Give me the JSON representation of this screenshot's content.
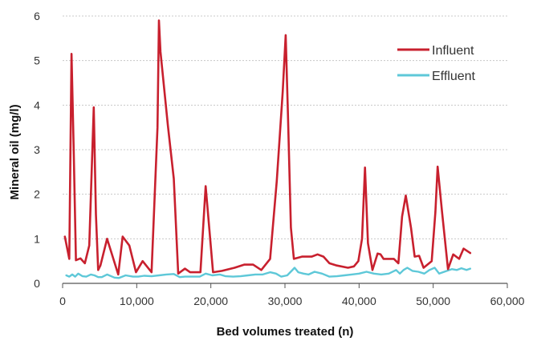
{
  "chart_data": {
    "type": "line",
    "title": "",
    "xlabel": "Bed volumes treated (n)",
    "ylabel": "Mineral oil (mg/l)",
    "xlim": [
      0,
      60000
    ],
    "ylim": [
      0,
      6
    ],
    "x_ticks": [
      0,
      10000,
      20000,
      30000,
      40000,
      50000,
      60000
    ],
    "x_tick_labels": [
      "0",
      "10,000",
      "20,000",
      "30,000",
      "40,000",
      "50,000",
      "60,000"
    ],
    "y_ticks": [
      0,
      1,
      2,
      3,
      4,
      5,
      6
    ],
    "y_tick_labels": [
      "0",
      "1",
      "2",
      "3",
      "4",
      "5",
      "6"
    ],
    "grid": "horizontal",
    "legend_position": "top-right",
    "series": [
      {
        "name": "Influent",
        "color": "#c8202e",
        "x": [
          300,
          900,
          1200,
          1500,
          1800,
          2400,
          3000,
          3600,
          4200,
          4500,
          4800,
          5100,
          6000,
          7500,
          8100,
          9000,
          9900,
          10800,
          12000,
          12800,
          13000,
          13200,
          14200,
          15000,
          15600,
          16500,
          17200,
          18600,
          19300,
          20300,
          21500,
          23200,
          24500,
          25700,
          26800,
          28000,
          28900,
          29700,
          30100,
          30400,
          30800,
          31200,
          32300,
          33600,
          34400,
          35200,
          36000,
          37000,
          38500,
          39300,
          39900,
          40400,
          40800,
          41200,
          41800,
          42500,
          42900,
          43300,
          44700,
          45300,
          45800,
          46300,
          47000,
          47500,
          48100,
          48700,
          49800,
          50300,
          50600,
          51200,
          52000,
          52700,
          53500,
          54100,
          55000
        ],
        "y": [
          1.05,
          0.55,
          5.15,
          3.0,
          0.52,
          0.56,
          0.45,
          0.85,
          3.95,
          1.55,
          0.3,
          0.4,
          1.0,
          0.2,
          1.05,
          0.85,
          0.25,
          0.5,
          0.25,
          3.5,
          5.9,
          5.2,
          3.55,
          2.35,
          0.22,
          0.33,
          0.25,
          0.25,
          2.18,
          0.25,
          0.28,
          0.35,
          0.42,
          0.42,
          0.3,
          0.55,
          2.3,
          4.3,
          5.57,
          3.8,
          1.25,
          0.55,
          0.6,
          0.6,
          0.65,
          0.6,
          0.45,
          0.4,
          0.35,
          0.38,
          0.5,
          1.0,
          2.6,
          0.9,
          0.3,
          0.67,
          0.65,
          0.55,
          0.55,
          0.45,
          1.5,
          1.97,
          1.25,
          0.6,
          0.62,
          0.35,
          0.5,
          1.6,
          2.62,
          1.6,
          0.32,
          0.65,
          0.55,
          0.78,
          0.68
        ]
      },
      {
        "name": "Effluent",
        "color": "#5ec8d8",
        "x": [
          500,
          900,
          1300,
          1700,
          2100,
          2700,
          3200,
          3800,
          4300,
          4800,
          5300,
          6000,
          7000,
          7600,
          8500,
          9500,
          10200,
          11000,
          12000,
          13000,
          14000,
          15000,
          15800,
          16500,
          17500,
          18500,
          19300,
          20200,
          21200,
          22000,
          23000,
          24000,
          25000,
          26000,
          27000,
          28000,
          28800,
          29500,
          30300,
          30900,
          31300,
          31800,
          32500,
          33200,
          34000,
          35000,
          36000,
          37000,
          38000,
          39000,
          40000,
          41000,
          42000,
          43000,
          44000,
          45000,
          45500,
          46000,
          46500,
          47200,
          48000,
          48800,
          49500,
          50200,
          50800,
          51500,
          52500,
          53200,
          53800,
          54500,
          55000
        ],
        "y": [
          0.18,
          0.15,
          0.2,
          0.15,
          0.22,
          0.16,
          0.15,
          0.2,
          0.18,
          0.14,
          0.14,
          0.2,
          0.13,
          0.12,
          0.18,
          0.15,
          0.15,
          0.17,
          0.16,
          0.18,
          0.2,
          0.21,
          0.14,
          0.15,
          0.15,
          0.15,
          0.22,
          0.18,
          0.2,
          0.16,
          0.15,
          0.16,
          0.18,
          0.2,
          0.2,
          0.25,
          0.22,
          0.15,
          0.18,
          0.28,
          0.35,
          0.25,
          0.22,
          0.2,
          0.26,
          0.22,
          0.15,
          0.16,
          0.18,
          0.2,
          0.22,
          0.26,
          0.22,
          0.2,
          0.22,
          0.3,
          0.22,
          0.3,
          0.35,
          0.28,
          0.26,
          0.22,
          0.3,
          0.35,
          0.22,
          0.26,
          0.32,
          0.3,
          0.34,
          0.3,
          0.33
        ]
      }
    ]
  }
}
